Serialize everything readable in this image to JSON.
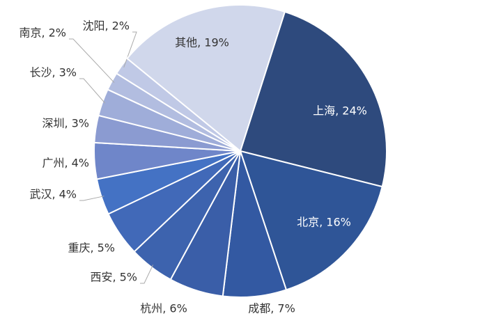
{
  "chart_data": {
    "type": "pie",
    "values": [
      24,
      16,
      7,
      6,
      5,
      5,
      4,
      4,
      3,
      3,
      2,
      2,
      19
    ],
    "value_labels": [
      "上海, 24%",
      "北京, 16%",
      "成都, 7%",
      "杭州, 6%",
      "西安, 5%",
      "重庆, 5%",
      "武汉, 4%",
      "广州, 4%",
      "深圳, 3%",
      "长沙, 3%",
      "南京, 2%",
      "沈阳, 2%",
      "其他, 19%"
    ],
    "colors": [
      "#2e4a7d",
      "#2f5597",
      "#3359a2",
      "#3a5ea8",
      "#3d63ae",
      "#4169b8",
      "#4472c4",
      "#6f86c9",
      "#8b9bd1",
      "#9fadd9",
      "#b2bde0",
      "#c0c9e6",
      "#d0d7eb"
    ]
  }
}
